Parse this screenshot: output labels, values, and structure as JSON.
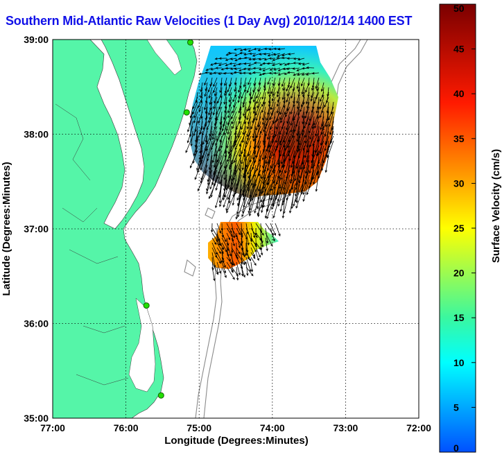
{
  "chart_data": {
    "type": "heatmap",
    "title": "Southern Mid-Atlantic Raw Velocities (1 Day Avg) 2010/12/14 1400 EST",
    "xlabel": "Longitude (Degrees:Minutes)",
    "ylabel": "Latitude (Degrees:Minutes)",
    "x_ticks": [
      "77:00",
      "76:00",
      "75:00",
      "74:00",
      "73:00",
      "72:00"
    ],
    "y_ticks": [
      "39:00",
      "38:00",
      "37:00",
      "36:00",
      "35:00"
    ],
    "xlim": [
      -77,
      -72
    ],
    "ylim": [
      35,
      39
    ],
    "grid": true,
    "colorbar": {
      "label": "Surface Velocity (cm/s)",
      "min": 0,
      "max": 50,
      "ticks": [
        "0",
        "5",
        "10",
        "15",
        "20",
        "25",
        "30",
        "35",
        "40",
        "45",
        "50"
      ]
    },
    "sites": [
      {
        "lon": -75.12,
        "lat": 38.97
      },
      {
        "lon": -75.17,
        "lat": 38.23
      },
      {
        "lon": -75.72,
        "lat": 36.19
      },
      {
        "lon": -75.52,
        "lat": 35.24
      }
    ]
  }
}
